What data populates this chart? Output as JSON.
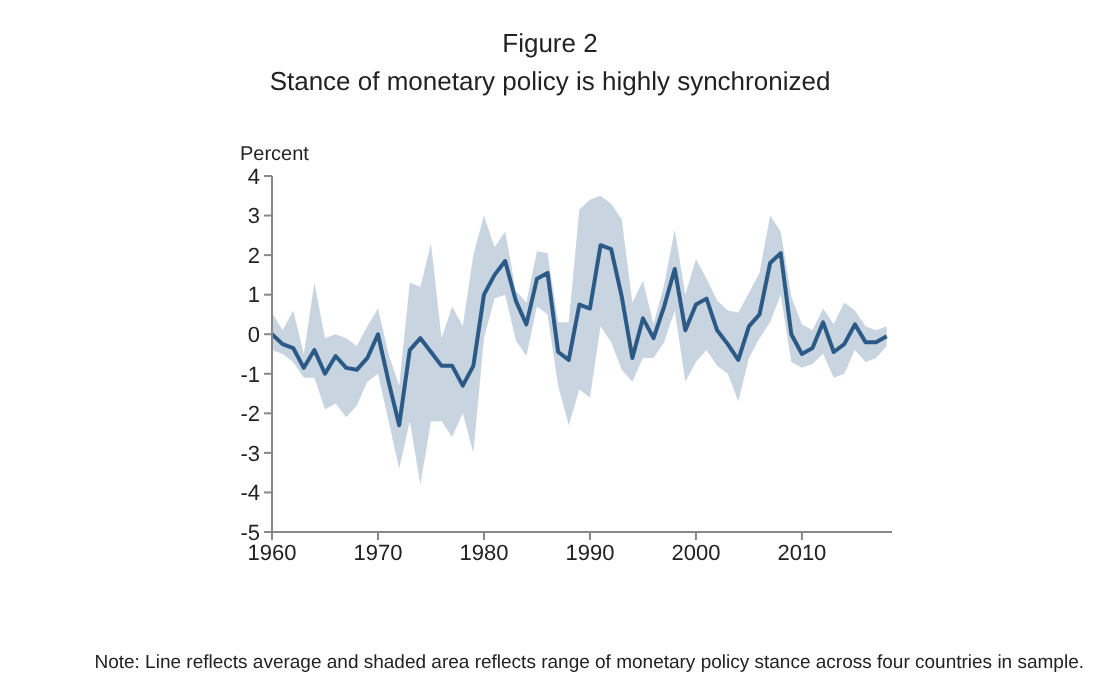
{
  "chart_data": {
    "type": "line",
    "title": "Figure 2",
    "subtitle": "Stance of monetary policy is highly synchronized",
    "ylabel": "Percent",
    "x": [
      1960,
      1961,
      1962,
      1963,
      1964,
      1965,
      1966,
      1967,
      1968,
      1969,
      1970,
      1971,
      1972,
      1973,
      1974,
      1975,
      1976,
      1977,
      1978,
      1979,
      1980,
      1981,
      1982,
      1983,
      1984,
      1985,
      1986,
      1987,
      1988,
      1989,
      1990,
      1991,
      1992,
      1993,
      1994,
      1995,
      1996,
      1997,
      1998,
      1999,
      2000,
      2001,
      2002,
      2003,
      2004,
      2005,
      2006,
      2007,
      2008,
      2009,
      2010,
      2011,
      2012,
      2013,
      2014,
      2015,
      2016,
      2017,
      2018
    ],
    "series": [
      {
        "color": "#2b5a87",
        "values": [
          0,
          -0.25,
          -0.35,
          -0.85,
          -0.4,
          -1.0,
          -0.55,
          -0.85,
          -0.9,
          -0.6,
          0,
          -1.2,
          -2.3,
          -0.4,
          -0.1,
          -0.45,
          -0.8,
          -0.8,
          -1.3,
          -0.8,
          1.0,
          1.5,
          1.85,
          0.85,
          0.25,
          1.4,
          1.55,
          -0.45,
          -0.65,
          0.75,
          0.65,
          2.25,
          2.15,
          0.95,
          -0.6,
          0.4,
          -0.1,
          0.7,
          1.65,
          0.1,
          0.75,
          0.9,
          0.1,
          -0.25,
          -0.65,
          0.2,
          0.5,
          1.8,
          2.05,
          0,
          -0.5,
          -0.35,
          0.3,
          -0.45,
          -0.25,
          0.25,
          -0.2,
          -0.2,
          -0.05
        ],
        "lower": [
          -0.4,
          -0.5,
          -0.7,
          -1.1,
          -1.1,
          -1.9,
          -1.75,
          -2.1,
          -1.8,
          -1.2,
          -1.0,
          -2.2,
          -3.4,
          -2.2,
          -3.8,
          -2.2,
          -2.2,
          -2.6,
          -2.0,
          -3.0,
          -0.1,
          0.9,
          1.0,
          -0.15,
          -0.55,
          0.7,
          0.5,
          -1.3,
          -2.3,
          -1.4,
          -1.6,
          0.2,
          -0.2,
          -0.9,
          -1.2,
          -0.6,
          -0.6,
          -0.2,
          0.6,
          -1.2,
          -0.7,
          -0.4,
          -0.8,
          -1.0,
          -1.7,
          -0.6,
          -0.1,
          0.3,
          1.0,
          -0.7,
          -0.85,
          -0.75,
          -0.5,
          -1.1,
          -1.0,
          -0.4,
          -0.7,
          -0.6,
          -0.3
        ],
        "upper": [
          0.55,
          0.1,
          0.6,
          -0.5,
          1.3,
          -0.1,
          0,
          -0.1,
          -0.3,
          0.2,
          0.65,
          -0.5,
          -1.3,
          1.3,
          1.2,
          2.3,
          -0.1,
          0.7,
          0.2,
          2.0,
          3.0,
          2.2,
          2.6,
          1.1,
          0.8,
          2.1,
          2.05,
          0.3,
          0.3,
          3.15,
          3.4,
          3.5,
          3.3,
          2.9,
          0.8,
          1.35,
          0.25,
          1.25,
          2.65,
          1.0,
          1.9,
          1.4,
          0.85,
          0.6,
          0.55,
          1.05,
          1.55,
          3.0,
          2.6,
          0.95,
          0.25,
          0.1,
          0.65,
          0.25,
          0.8,
          0.6,
          0.2,
          0.1,
          0.2
        ]
      }
    ],
    "xlim": [
      1960,
      2018.5
    ],
    "xticks": [
      1960,
      1970,
      1980,
      1990,
      2000,
      2010
    ],
    "ylim": [
      -5,
      4
    ],
    "yticks": [
      -5,
      -4,
      -3,
      -2,
      -1,
      0,
      1,
      2,
      3,
      4
    ],
    "grid": false,
    "legend": false,
    "marker": "none",
    "line_style": "solid",
    "annotations": [
      "Note: Line reflects average and shaded area reflects range of monetary policy stance across four countries in sample."
    ]
  }
}
